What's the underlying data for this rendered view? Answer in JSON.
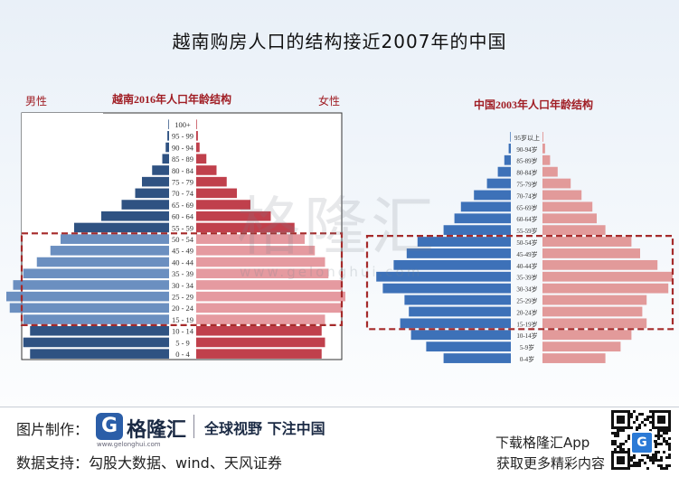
{
  "title": "越南购房人口的结构接近2007年的中国",
  "chart_data": [
    {
      "type": "bar",
      "orientation": "horizontal-population-pyramid",
      "title": "越南2016年人口年龄结构",
      "left_label": "男性",
      "right_label": "女性",
      "categories": [
        "0 - 4",
        "5 - 9",
        "10 - 14",
        "15 - 19",
        "20 - 24",
        "25 - 29",
        "30 - 34",
        "35 - 39",
        "40 - 44",
        "45 - 49",
        "50 - 54",
        "55 - 59",
        "60 - 64",
        "65 - 69",
        "70 - 74",
        "75 - 79",
        "80 - 84",
        "85 - 89",
        "90 - 94",
        "95 - 99",
        "100+"
      ],
      "series": [
        {
          "name": "男性",
          "values": [
            4.1,
            4.3,
            4.1,
            4.3,
            4.7,
            4.8,
            4.6,
            4.3,
            3.9,
            3.5,
            3.2,
            2.8,
            2.0,
            1.4,
            1.0,
            0.8,
            0.5,
            0.2,
            0.1,
            0.05,
            0.02
          ]
        },
        {
          "name": "女性",
          "values": [
            3.7,
            3.8,
            3.7,
            3.8,
            4.3,
            4.4,
            4.3,
            3.9,
            3.8,
            3.5,
            3.2,
            2.9,
            2.2,
            1.6,
            1.2,
            0.9,
            0.6,
            0.3,
            0.1,
            0.05,
            0.02
          ]
        }
      ],
      "highlight_range": [
        "15 - 19",
        "50 - 54"
      ]
    },
    {
      "type": "bar",
      "orientation": "horizontal-population-pyramid",
      "title": "中国2003年人口年龄结构",
      "categories": [
        "0-4岁",
        "5-9岁",
        "10-14岁",
        "15-19岁",
        "20-24岁",
        "25-29岁",
        "30-34岁",
        "35-39岁",
        "40-44岁",
        "45-49岁",
        "50-54岁",
        "55-59岁",
        "60-64岁",
        "65-69岁",
        "70-74岁",
        "75-79岁",
        "80-84岁",
        "85-89岁",
        "90-94岁",
        "95岁以上"
      ],
      "series": [
        {
          "name": "",
          "values": [
            3.1,
            3.9,
            4.6,
            5.1,
            4.7,
            4.9,
            5.9,
            6.2,
            5.4,
            4.8,
            4.3,
            3.1,
            2.6,
            2.3,
            1.7,
            1.1,
            0.6,
            0.3,
            0.1,
            0.03
          ]
        },
        {
          "name": "",
          "values": [
            2.9,
            3.6,
            4.1,
            4.8,
            4.6,
            4.8,
            5.8,
            6.0,
            5.3,
            4.5,
            4.1,
            2.9,
            2.5,
            2.3,
            1.8,
            1.3,
            0.7,
            0.35,
            0.12,
            0.04
          ]
        }
      ],
      "highlight_range": [
        "15-19岁",
        "50-54岁"
      ]
    }
  ],
  "watermark": {
    "text": "格隆汇",
    "sub": "www.gelonghui.com"
  },
  "footer": {
    "made_by_label": "图片制作：",
    "brand_name": "格隆汇",
    "brand_url": "www.gelonghui.com",
    "slogan": "全球视野 下注中国",
    "data_label": "数据支持：勾股大数据、wind、天风证券",
    "download_text": "下载格隆汇App",
    "more_text": "获取更多精彩内容"
  },
  "colors": {
    "male_dark": "#2f5282",
    "male_light": "#6b8fc0",
    "female_dark": "#c0404c",
    "female_light": "#e59aa0",
    "cn_male": "#3d71b8",
    "cn_female": "#e29a9a",
    "highlight": "#a52a2a"
  }
}
